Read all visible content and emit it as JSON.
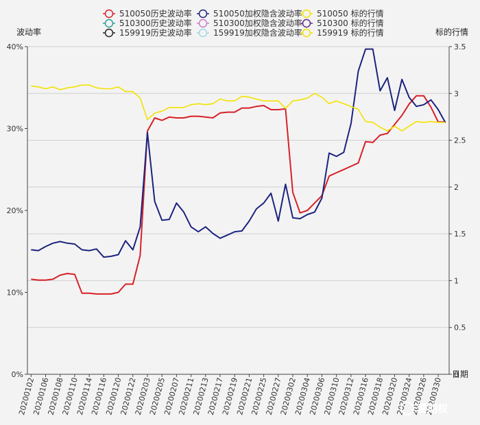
{
  "chart_data": {
    "type": "line",
    "title": "",
    "ylabel_left": "波动率",
    "ylabel_right": "标的行情",
    "xlabel": "日期",
    "ylim_left": [
      0,
      40
    ],
    "ylim_right": [
      0,
      3.5
    ],
    "y_ticks_left": [
      "0%",
      "10%",
      "20%",
      "30%",
      "40%"
    ],
    "y_ticks_left_values": [
      0,
      10,
      20,
      30,
      40
    ],
    "y_ticks_right": [
      "0",
      "0.5",
      "1",
      "1.5",
      "2",
      "2.5",
      "3",
      "3.5"
    ],
    "y_ticks_right_values": [
      0,
      0.5,
      1,
      1.5,
      2,
      2.5,
      3,
      3.5
    ],
    "grid": "horizontal",
    "legend_position": "top-center",
    "x": [
      "20200102",
      "20200103",
      "20200106",
      "20200107",
      "20200108",
      "20200109",
      "20200110",
      "20200113",
      "20200114",
      "20200115",
      "20200116",
      "20200117",
      "20200120",
      "20200121",
      "20200122",
      "20200123",
      "20200203",
      "20200204",
      "20200205",
      "20200206",
      "20200207",
      "20200210",
      "20200211",
      "20200212",
      "20200213",
      "20200214",
      "20200217",
      "20200218",
      "20200219",
      "20200220",
      "20200221",
      "20200224",
      "20200225",
      "20200226",
      "20200227",
      "20200228",
      "20200302",
      "20200303",
      "20200304",
      "20200305",
      "20200306",
      "20200309",
      "20200310",
      "20200311",
      "20200312",
      "20200313",
      "20200316",
      "20200317",
      "20200318",
      "20200319",
      "20200320",
      "20200323",
      "20200324",
      "20200325",
      "20200326",
      "20200327",
      "20200330",
      "20200331"
    ],
    "x_tick_labels": [
      "20200102",
      "20200106",
      "20200108",
      "20200110",
      "20200114",
      "20200116",
      "20200120",
      "20200122",
      "20200203",
      "20200205",
      "20200207",
      "20200211",
      "20200213",
      "20200217",
      "20200219",
      "20200221",
      "20200225",
      "20200227",
      "20200302",
      "20200304",
      "20200306",
      "20200310",
      "20200312",
      "20200316",
      "20200318",
      "20200320",
      "20200324",
      "20200326",
      "20200330"
    ],
    "x_tick_indices": [
      0,
      2,
      4,
      6,
      8,
      10,
      12,
      14,
      16,
      18,
      20,
      22,
      24,
      26,
      28,
      30,
      32,
      34,
      36,
      38,
      40,
      42,
      44,
      46,
      48,
      50,
      52,
      54,
      56
    ],
    "legend": [
      {
        "name": "510050历史波动率",
        "color": "#d62027",
        "col": 0
      },
      {
        "name": "510300历史波动率",
        "color": "#2aa198",
        "col": 0
      },
      {
        "name": "159919历史波动率",
        "color": "#222222",
        "col": 0
      },
      {
        "name": "510050加权隐含波动率",
        "color": "#1a237e",
        "col": 1
      },
      {
        "name": "510300加权隐含波动率",
        "color": "#c77ccf",
        "col": 1
      },
      {
        "name": "159919加权隐含波动率",
        "color": "#9fd6e8",
        "col": 1
      },
      {
        "name": "510050 标的行情",
        "color": "#f2e200",
        "col": 2
      },
      {
        "name": "510300 标的行情",
        "color": "#5e2b8c",
        "col": 2
      },
      {
        "name": "159919 标的行情",
        "color": "#f2e200",
        "col": 2
      }
    ],
    "series": [
      {
        "name": "510050历史波动率",
        "axis": "left",
        "color": "#d62027",
        "values": [
          11.6,
          11.5,
          11.5,
          11.6,
          12.1,
          12.3,
          12.2,
          9.9,
          9.9,
          9.8,
          9.8,
          9.8,
          10.0,
          11.0,
          11.0,
          14.5,
          29.7,
          31.3,
          31.0,
          31.4,
          31.3,
          31.3,
          31.5,
          31.5,
          31.4,
          31.3,
          31.9,
          32.0,
          32.0,
          32.5,
          32.5,
          32.7,
          32.8,
          32.3,
          32.3,
          32.4,
          22.2,
          19.7,
          20.0,
          20.9,
          21.8,
          24.2,
          24.6,
          25.0,
          25.4,
          25.8,
          28.4,
          28.3,
          29.2,
          29.4,
          30.5,
          31.6,
          33.0,
          34.0,
          34.0,
          32.6,
          30.8,
          30.8
        ]
      },
      {
        "name": "510050加权隐含波动率",
        "axis": "left",
        "color": "#1a237e",
        "values": [
          15.2,
          15.1,
          15.6,
          16.0,
          16.2,
          16.0,
          15.9,
          15.2,
          15.1,
          15.3,
          14.3,
          14.4,
          14.6,
          16.3,
          15.2,
          18.0,
          29.5,
          21.1,
          18.8,
          18.9,
          20.9,
          19.8,
          18.0,
          17.4,
          18.0,
          17.2,
          16.6,
          17.0,
          17.4,
          17.5,
          18.7,
          20.2,
          20.9,
          22.1,
          18.7,
          23.2,
          19.1,
          19.0,
          19.5,
          19.8,
          21.5,
          27.0,
          26.6,
          27.1,
          30.6,
          37.0,
          39.7,
          39.7,
          34.6,
          36.2,
          32.2,
          36.0,
          33.8,
          32.7,
          32.9,
          33.5,
          32.3,
          30.7
        ]
      },
      {
        "name": "510050 标的行情",
        "axis": "right",
        "color": "#f2e200",
        "values": [
          3.08,
          3.07,
          3.05,
          3.07,
          3.04,
          3.06,
          3.07,
          3.09,
          3.09,
          3.06,
          3.05,
          3.05,
          3.07,
          3.02,
          3.02,
          2.95,
          2.72,
          2.79,
          2.81,
          2.85,
          2.85,
          2.85,
          2.88,
          2.89,
          2.88,
          2.89,
          2.94,
          2.92,
          2.92,
          2.97,
          2.96,
          2.94,
          2.92,
          2.92,
          2.92,
          2.84,
          2.92,
          2.93,
          2.95,
          3.0,
          2.96,
          2.89,
          2.92,
          2.89,
          2.86,
          2.83,
          2.7,
          2.69,
          2.64,
          2.6,
          2.65,
          2.6,
          2.65,
          2.7,
          2.69,
          2.7,
          2.69,
          2.69
        ]
      }
    ]
  },
  "watermark": "爱期权"
}
